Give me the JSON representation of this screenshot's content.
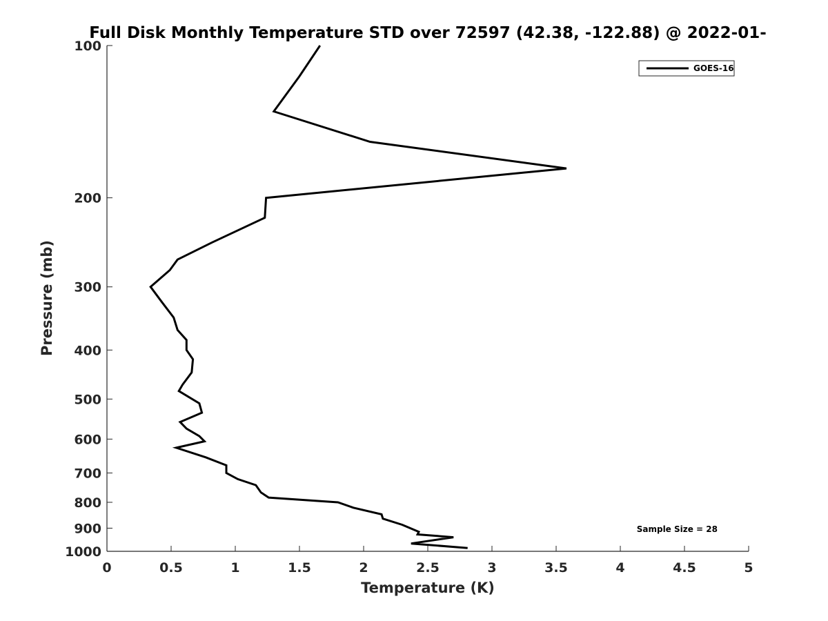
{
  "chart_data": {
    "type": "line",
    "title": "Full Disk Monthly Temperature STD over 72597 (42.38, -122.88) @ 2022-01-",
    "xlabel": "Temperature (K)",
    "ylabel": "Pressure (mb)",
    "xlim": [
      0,
      5
    ],
    "ylim": [
      100,
      1000
    ],
    "y_scale": "log",
    "y_reversed": true,
    "x_ticks": [
      "0",
      "0.5",
      "1",
      "1.5",
      "2",
      "2.5",
      "3",
      "3.5",
      "4",
      "4.5",
      "5"
    ],
    "y_ticks": [
      "100",
      "200",
      "300",
      "400",
      "500",
      "600",
      "700",
      "800",
      "900",
      "1000"
    ],
    "grid": false,
    "legend_position": "top-right",
    "annotation": "Sample Size = 28",
    "series": [
      {
        "name": "GOES-16",
        "color": "#000000",
        "points": [
          [
            1.66,
            100
          ],
          [
            1.5,
            115
          ],
          [
            1.3,
            135
          ],
          [
            2.05,
            155
          ],
          [
            3.58,
            175
          ],
          [
            1.24,
            200
          ],
          [
            1.23,
            219
          ],
          [
            0.82,
            245
          ],
          [
            0.55,
            265
          ],
          [
            0.49,
            278
          ],
          [
            0.34,
            300
          ],
          [
            0.43,
            322
          ],
          [
            0.52,
            345
          ],
          [
            0.55,
            365
          ],
          [
            0.62,
            382
          ],
          [
            0.62,
            400
          ],
          [
            0.67,
            417
          ],
          [
            0.66,
            443
          ],
          [
            0.59,
            468
          ],
          [
            0.56,
            482
          ],
          [
            0.72,
            510
          ],
          [
            0.74,
            532
          ],
          [
            0.57,
            555
          ],
          [
            0.62,
            572
          ],
          [
            0.72,
            592
          ],
          [
            0.76,
            606
          ],
          [
            0.54,
            624
          ],
          [
            0.77,
            652
          ],
          [
            0.93,
            676
          ],
          [
            0.93,
            695
          ],
          [
            0.93,
            700
          ],
          [
            1.02,
            720
          ],
          [
            1.16,
            740
          ],
          [
            1.2,
            765
          ],
          [
            1.26,
            783
          ],
          [
            1.8,
            800
          ],
          [
            1.92,
            820
          ],
          [
            2.14,
            845
          ],
          [
            2.15,
            862
          ],
          [
            2.3,
            886
          ],
          [
            2.43,
            915
          ],
          [
            2.42,
            926
          ],
          [
            2.7,
            938
          ],
          [
            2.37,
            965
          ],
          [
            2.81,
            985
          ]
        ]
      }
    ]
  }
}
